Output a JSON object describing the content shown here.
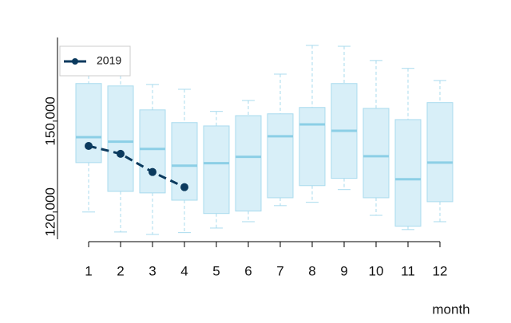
{
  "chart_data": {
    "type": "box",
    "categories": [
      "1",
      "2",
      "3",
      "4",
      "5",
      "6",
      "7",
      "8",
      "9",
      "10",
      "11",
      "12"
    ],
    "x_label": "month",
    "box_fill": "#d8eff8",
    "box_stroke": "#a9dbee",
    "median_color": "#8ccfe6",
    "boxes": [
      {
        "whislo": 120000,
        "q1": 136300,
        "med": 144700,
        "q3": 162400,
        "whishi": 165000
      },
      {
        "whislo": 113400,
        "q1": 126800,
        "med": 143200,
        "q3": 161600,
        "whishi": 165000
      },
      {
        "whislo": 112600,
        "q1": 126300,
        "med": 140800,
        "q3": 153700,
        "whishi": 162100
      },
      {
        "whislo": 113200,
        "q1": 123900,
        "med": 135300,
        "q3": 149500,
        "whishi": 160500
      },
      {
        "whislo": 114700,
        "q1": 119500,
        "med": 136100,
        "q3": 148400,
        "whishi": 153200
      },
      {
        "whislo": 116800,
        "q1": 120300,
        "med": 138200,
        "q3": 151800,
        "whishi": 156800
      },
      {
        "whislo": 122100,
        "q1": 124700,
        "med": 145000,
        "q3": 152400,
        "whishi": 165500
      },
      {
        "whislo": 123200,
        "q1": 128700,
        "med": 148900,
        "q3": 154500,
        "whishi": 175000
      },
      {
        "whislo": 127400,
        "q1": 131100,
        "med": 146800,
        "q3": 162400,
        "whishi": 174700
      },
      {
        "whislo": 118900,
        "q1": 124700,
        "med": 138400,
        "q3": 154200,
        "whishi": 170000
      },
      {
        "whislo": 114200,
        "q1": 115300,
        "med": 130800,
        "q3": 150500,
        "whishi": 167400
      },
      {
        "whislo": 116800,
        "q1": 123400,
        "med": 136300,
        "q3": 156100,
        "whishi": 163400
      }
    ],
    "series": [
      {
        "name": "2019",
        "color": "#0b3a5e",
        "values": [
          141800,
          139200,
          133200,
          128200,
          null,
          null,
          null,
          null,
          null,
          null,
          null,
          null
        ]
      }
    ],
    "ylim": [
      111000,
      177600
    ],
    "yticks": [
      {
        "value": 120000,
        "label": "120 000"
      },
      {
        "value": 150000,
        "label": "150 000"
      }
    ],
    "legend": "top-left"
  }
}
